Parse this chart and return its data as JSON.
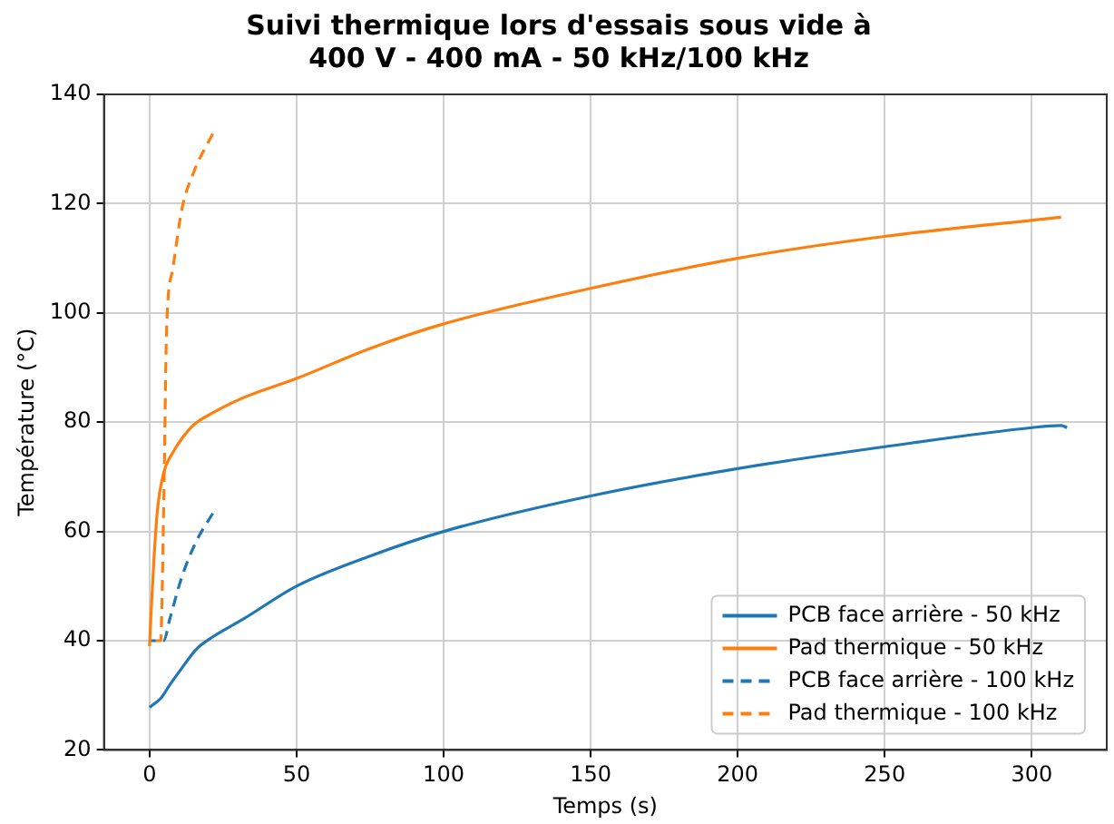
{
  "chart_data": {
    "type": "line",
    "title": "Suivi thermique lors d'essais sous vide à\n400 V - 400 mA - 50 kHz/100 kHz",
    "xlabel": "Temps (s)",
    "ylabel": "Température (°C)",
    "xlim": [
      -15.5,
      325.5
    ],
    "xticks": [
      0,
      50,
      100,
      150,
      200,
      250,
      300
    ],
    "ylim": [
      20,
      140
    ],
    "yticks": [
      20,
      40,
      60,
      80,
      100,
      120,
      140
    ],
    "grid": true,
    "legend": "bottom right",
    "marker": "none",
    "series": [
      {
        "name": "PCB face arrière - 50 kHz",
        "color": "#1f77b4",
        "line_style": "solid",
        "x": [
          0,
          1,
          3.75,
          7,
          11,
          16,
          21.5,
          32,
          50,
          75,
          100,
          150,
          200,
          250,
          300,
          310,
          312
        ],
        "values": [
          27.8,
          28.2,
          29.4,
          32,
          35,
          38.5,
          40.7,
          44,
          50,
          55.5,
          60,
          66.5,
          71.5,
          75.5,
          79,
          79.4,
          79
        ]
      },
      {
        "name": "Pad thermique - 50 kHz",
        "color": "#ff7f0e",
        "line_style": "solid",
        "x": [
          0,
          0.5,
          1.5,
          2.7,
          4.8,
          8,
          11,
          15,
          21.5,
          32,
          50,
          75,
          100,
          150,
          200,
          250,
          310
        ],
        "values": [
          39,
          45,
          55,
          64,
          70.7,
          74.5,
          77,
          79.5,
          81.7,
          84.5,
          88,
          93.5,
          98,
          104.5,
          110,
          114,
          117.5
        ]
      },
      {
        "name": "PCB face arrière - 100 kHz",
        "color": "#1f77b4",
        "line_style": "dashed",
        "x": [
          0,
          4.8,
          6.9,
          11,
          16,
          21.5
        ],
        "values": [
          40,
          40,
          44,
          51.7,
          58.3,
          63.3
        ]
      },
      {
        "name": "Pad thermique - 100 kHz",
        "color": "#ff7f0e",
        "line_style": "dashed",
        "x": [
          0,
          3.75,
          4.8,
          5.8,
          7.9,
          11,
          15.2,
          21.5
        ],
        "values": [
          40,
          40,
          64,
          97,
          108,
          119,
          126,
          132.8
        ]
      }
    ]
  }
}
